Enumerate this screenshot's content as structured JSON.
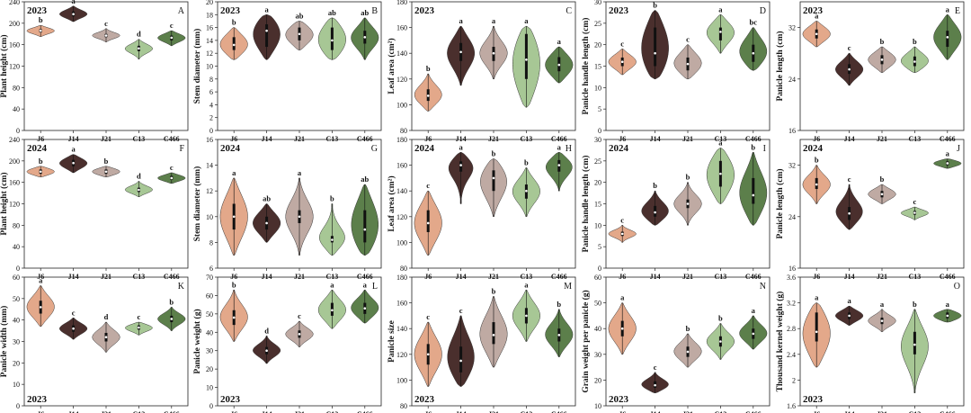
{
  "chart_data": {
    "type": "violin",
    "categories": [
      "J6",
      "J14",
      "J21",
      "C13",
      "C466"
    ],
    "colors": {
      "J6": "#e3a88a",
      "J14": "#4a2f2d",
      "J21": "#bfaaa3",
      "C13": "#a7c795",
      "C466": "#5c7f4b"
    },
    "panels": [
      {
        "letter": "A",
        "year": "2023",
        "year_pos": "top",
        "ylabel": "Plant height (cm)",
        "ylim": [
          0,
          240
        ],
        "yticks": [
          0,
          40,
          80,
          120,
          160,
          200,
          240
        ],
        "values": [
          {
            "min": 175,
            "max": 196,
            "median": 186,
            "q1": 183,
            "q3": 189
          },
          {
            "min": 203,
            "max": 232,
            "median": 217,
            "q1": 213,
            "q3": 222
          },
          {
            "min": 165,
            "max": 190,
            "median": 177,
            "q1": 174,
            "q3": 180
          },
          {
            "min": 133,
            "max": 170,
            "median": 153,
            "q1": 148,
            "q3": 158
          },
          {
            "min": 158,
            "max": 186,
            "median": 173,
            "q1": 168,
            "q3": 177
          }
        ],
        "letters": [
          "b",
          "a",
          "c",
          "d",
          "c"
        ]
      },
      {
        "letter": "B",
        "year": "2023",
        "year_pos": "top",
        "ylabel": "Stem diameter (mm)",
        "ylim": [
          0,
          20
        ],
        "yticks": [
          0,
          2,
          4,
          6,
          8,
          10,
          12,
          14,
          16,
          18,
          20
        ],
        "values": [
          {
            "min": 11,
            "max": 16,
            "median": 13.3,
            "q1": 12.5,
            "q3": 14.5
          },
          {
            "min": 11,
            "max": 18,
            "median": 15.5,
            "q1": 13,
            "q3": 16.5
          },
          {
            "min": 12.5,
            "max": 17,
            "median": 15,
            "q1": 14,
            "q3": 16
          },
          {
            "min": 11,
            "max": 17.5,
            "median": 14,
            "q1": 12.5,
            "q3": 16
          },
          {
            "min": 11,
            "max": 17.5,
            "median": 14.5,
            "q1": 13.5,
            "q3": 15.5
          }
        ],
        "letters": [
          "b",
          "a",
          "ab",
          "ab",
          "ab"
        ]
      },
      {
        "letter": "C",
        "year": "2023",
        "year_pos": "top",
        "ylabel": "Leaf area (cm²)",
        "ylim": [
          80,
          180
        ],
        "yticks": [
          80,
          100,
          120,
          140,
          160,
          180
        ],
        "values": [
          {
            "min": 95,
            "max": 124,
            "median": 107,
            "q1": 103,
            "q3": 112
          },
          {
            "min": 115,
            "max": 161,
            "median": 141,
            "q1": 134,
            "q3": 148
          },
          {
            "min": 120,
            "max": 161,
            "median": 140,
            "q1": 134,
            "q3": 145
          },
          {
            "min": 98,
            "max": 161,
            "median": 135,
            "q1": 120,
            "q3": 155
          },
          {
            "min": 117,
            "max": 145,
            "median": 131,
            "q1": 126,
            "q3": 137
          }
        ],
        "letters": [
          "b",
          "a",
          "a",
          "a",
          "a"
        ]
      },
      {
        "letter": "D",
        "year": "2023",
        "year_pos": "top",
        "ylabel": "Panicle handle length (cm)",
        "ylim": [
          0,
          30
        ],
        "yticks": [
          0,
          5,
          10,
          15,
          20,
          25,
          30
        ],
        "values": [
          {
            "min": 13,
            "max": 19,
            "median": 16,
            "q1": 15,
            "q3": 17
          },
          {
            "min": 12,
            "max": 28,
            "median": 18,
            "q1": 15,
            "q3": 24
          },
          {
            "min": 12,
            "max": 20,
            "median": 15.5,
            "q1": 14,
            "q3": 17
          },
          {
            "min": 18,
            "max": 27,
            "median": 23,
            "q1": 21,
            "q3": 24
          },
          {
            "min": 14,
            "max": 24,
            "median": 18,
            "q1": 16,
            "q3": 20
          }
        ],
        "letters": [
          "c",
          "b",
          "c",
          "a",
          "bc"
        ]
      },
      {
        "letter": "E",
        "year": "2023",
        "year_pos": "top",
        "ylabel": "Panicle length (cm)",
        "ylim": [
          16,
          36
        ],
        "yticks": [
          16,
          24,
          32
        ],
        "values": [
          {
            "min": 29,
            "max": 33,
            "median": 31,
            "q1": 30.3,
            "q3": 31.7
          },
          {
            "min": 23,
            "max": 28,
            "median": 25.5,
            "q1": 24.8,
            "q3": 26.3
          },
          {
            "min": 25,
            "max": 29,
            "median": 27,
            "q1": 26.3,
            "q3": 27.7
          },
          {
            "min": 25,
            "max": 29,
            "median": 26.7,
            "q1": 26,
            "q3": 27.5
          },
          {
            "min": 27,
            "max": 34,
            "median": 30.5,
            "q1": 29,
            "q3": 31.5
          }
        ],
        "letters": [
          "a",
          "c",
          "b",
          "b",
          "a"
        ]
      },
      {
        "letter": "F",
        "year": "2024",
        "year_pos": "top",
        "ylabel": "Plant height (cm)",
        "ylim": [
          0,
          240
        ],
        "yticks": [
          0,
          40,
          80,
          120,
          160,
          200,
          240
        ],
        "values": [
          {
            "min": 170,
            "max": 190,
            "median": 180,
            "q1": 176,
            "q3": 184
          },
          {
            "min": 178,
            "max": 212,
            "median": 196,
            "q1": 190,
            "q3": 202
          },
          {
            "min": 170,
            "max": 190,
            "median": 180,
            "q1": 176,
            "q3": 184
          },
          {
            "min": 133,
            "max": 162,
            "median": 146,
            "q1": 142,
            "q3": 150
          },
          {
            "min": 158,
            "max": 178,
            "median": 168,
            "q1": 165,
            "q3": 172
          }
        ],
        "letters": [
          "b",
          "a",
          "b",
          "d",
          "c"
        ]
      },
      {
        "letter": "G",
        "year": "2024",
        "year_pos": "top",
        "ylabel": "Stem diameter (mm)",
        "ylim": [
          6,
          16
        ],
        "yticks": [
          6,
          8,
          10,
          12,
          14,
          16
        ],
        "values": [
          {
            "min": 7,
            "max": 13,
            "median": 10,
            "q1": 9,
            "q3": 11
          },
          {
            "min": 8,
            "max": 11,
            "median": 9.5,
            "q1": 9,
            "q3": 10
          },
          {
            "min": 7,
            "max": 13,
            "median": 10,
            "q1": 9.5,
            "q3": 10.5
          },
          {
            "min": 7,
            "max": 11,
            "median": 8.2,
            "q1": 8,
            "q3": 8.5
          },
          {
            "min": 7,
            "max": 12.5,
            "median": 9,
            "q1": 8,
            "q3": 10.5
          }
        ],
        "letters": [
          "a",
          "ab",
          "a",
          "b",
          "ab"
        ]
      },
      {
        "letter": "H",
        "year": "2024",
        "year_pos": "top",
        "ylabel": "Leaf area (cm²)",
        "ylim": [
          80,
          180
        ],
        "yticks": [
          80,
          100,
          120,
          140,
          160,
          180
        ],
        "values": [
          {
            "min": 90,
            "max": 140,
            "median": 115,
            "q1": 108,
            "q3": 125
          },
          {
            "min": 130,
            "max": 170,
            "median": 160,
            "q1": 155,
            "q3": 163
          },
          {
            "min": 120,
            "max": 165,
            "median": 150,
            "q1": 140,
            "q3": 156
          },
          {
            "min": 120,
            "max": 158,
            "median": 140,
            "q1": 134,
            "q3": 145
          },
          {
            "min": 140,
            "max": 170,
            "median": 160,
            "q1": 155,
            "q3": 164
          }
        ],
        "letters": [
          "c",
          "a",
          "b",
          "b",
          "a"
        ]
      },
      {
        "letter": "I",
        "year": "2024",
        "year_pos": "top",
        "ylabel": "Panicle handle length (cm)",
        "ylim": [
          0,
          30
        ],
        "yticks": [
          0,
          5,
          10,
          15,
          20,
          25,
          30
        ],
        "values": [
          {
            "min": 6,
            "max": 10,
            "median": 8,
            "q1": 7.5,
            "q3": 8.5
          },
          {
            "min": 10,
            "max": 18,
            "median": 13,
            "q1": 12,
            "q3": 14.5
          },
          {
            "min": 10,
            "max": 20,
            "median": 15,
            "q1": 14,
            "q3": 16
          },
          {
            "min": 15,
            "max": 28,
            "median": 22,
            "q1": 19,
            "q3": 25
          },
          {
            "min": 10,
            "max": 27,
            "median": 17,
            "q1": 15,
            "q3": 21
          }
        ],
        "letters": [
          "c",
          "b",
          "b",
          "a",
          "b"
        ]
      },
      {
        "letter": "J",
        "year": "2024",
        "year_pos": "top",
        "ylabel": "Panicle length (cm)",
        "ylim": [
          16,
          36
        ],
        "yticks": [
          16,
          24,
          32
        ],
        "values": [
          {
            "min": 26,
            "max": 32,
            "median": 29,
            "q1": 28.3,
            "q3": 30
          },
          {
            "min": 22,
            "max": 29,
            "median": 24.5,
            "q1": 23.5,
            "q3": 25.5
          },
          {
            "min": 26,
            "max": 29,
            "median": 27.5,
            "q1": 27,
            "q3": 28
          },
          {
            "min": 23.5,
            "max": 25.5,
            "median": 24.6,
            "q1": 24.3,
            "q3": 24.9
          },
          {
            "min": 31.5,
            "max": 33,
            "median": 32.3,
            "q1": 32,
            "q3": 32.6
          }
        ],
        "letters": [
          "b",
          "c",
          "b",
          "c",
          "a"
        ]
      },
      {
        "letter": "K",
        "year": "2023",
        "year_pos": "bottom",
        "ylabel": "Panicle width (mm)",
        "ylim": [
          0,
          60
        ],
        "yticks": [
          0,
          10,
          20,
          30,
          40,
          50,
          60
        ],
        "values": [
          {
            "min": 37,
            "max": 56,
            "median": 46,
            "q1": 43,
            "q3": 49
          },
          {
            "min": 31,
            "max": 41,
            "median": 36,
            "q1": 34.5,
            "q3": 37.5
          },
          {
            "min": 25,
            "max": 39,
            "median": 32,
            "q1": 30,
            "q3": 34
          },
          {
            "min": 33,
            "max": 39,
            "median": 36.5,
            "q1": 35.5,
            "q3": 37.5
          },
          {
            "min": 35,
            "max": 46,
            "median": 40.5,
            "q1": 39,
            "q3": 42
          }
        ],
        "letters": [
          "a",
          "c",
          "d",
          "c",
          "b"
        ]
      },
      {
        "letter": "L",
        "year": "2023",
        "year_pos": "bottom",
        "ylabel": "Panicle weight (g)",
        "ylim": [
          0,
          70
        ],
        "yticks": [
          0,
          10,
          20,
          30,
          40,
          50,
          60,
          70
        ],
        "values": [
          {
            "min": 35,
            "max": 63,
            "median": 48,
            "q1": 44,
            "q3": 52
          },
          {
            "min": 23,
            "max": 38,
            "median": 30,
            "q1": 28,
            "q3": 32
          },
          {
            "min": 32,
            "max": 46,
            "median": 39,
            "q1": 37,
            "q3": 41
          },
          {
            "min": 42,
            "max": 63,
            "median": 52,
            "q1": 49,
            "q3": 56
          },
          {
            "min": 45,
            "max": 63,
            "median": 53,
            "q1": 50,
            "q3": 56
          }
        ],
        "letters": [
          "b",
          "d",
          "c",
          "a",
          "a"
        ]
      },
      {
        "letter": "M",
        "year": "2023",
        "year_pos": "bottom",
        "ylabel": "Panicle size",
        "ylim": [
          80,
          180
        ],
        "yticks": [
          80,
          100,
          120,
          140,
          160,
          180
        ],
        "values": [
          {
            "min": 95,
            "max": 145,
            "median": 120,
            "q1": 112,
            "q3": 128
          },
          {
            "min": 95,
            "max": 150,
            "median": 115,
            "q1": 106,
            "q3": 126
          },
          {
            "min": 110,
            "max": 165,
            "median": 135,
            "q1": 128,
            "q3": 145
          },
          {
            "min": 130,
            "max": 170,
            "median": 150,
            "q1": 144,
            "q3": 156
          },
          {
            "min": 118,
            "max": 155,
            "median": 135,
            "q1": 130,
            "q3": 140
          }
        ],
        "letters": [
          "c",
          "c",
          "b",
          "a",
          "b"
        ]
      },
      {
        "letter": "N",
        "year": "2023",
        "year_pos": "bottom",
        "ylabel": "Grain weight per panicle (g)",
        "ylim": [
          10,
          60
        ],
        "yticks": [
          10,
          20,
          30,
          40,
          50,
          60
        ],
        "values": [
          {
            "min": 30,
            "max": 50,
            "median": 40,
            "q1": 37,
            "q3": 43
          },
          {
            "min": 15,
            "max": 23,
            "median": 18,
            "q1": 17,
            "q3": 19.5
          },
          {
            "min": 25,
            "max": 38,
            "median": 31,
            "q1": 29,
            "q3": 33
          },
          {
            "min": 28,
            "max": 42,
            "median": 35,
            "q1": 33,
            "q3": 37
          },
          {
            "min": 32,
            "max": 45,
            "median": 38,
            "q1": 36,
            "q3": 40
          }
        ],
        "letters": [
          "a",
          "c",
          "b",
          "b",
          "a"
        ]
      },
      {
        "letter": "O",
        "year": "2023",
        "year_pos": "bottom",
        "ylabel": "Thousand kernel weight (g)",
        "ylim": [
          1.6,
          3.6
        ],
        "yticks": [
          1.6,
          2.0,
          2.4,
          2.8,
          3.2,
          3.6
        ],
        "values": [
          {
            "min": 2.2,
            "max": 3.2,
            "median": 2.75,
            "q1": 2.6,
            "q3": 3.05
          },
          {
            "min": 2.85,
            "max": 3.15,
            "median": 3.0,
            "q1": 2.95,
            "q3": 3.05
          },
          {
            "min": 2.75,
            "max": 3.1,
            "median": 2.92,
            "q1": 2.87,
            "q3": 2.97
          },
          {
            "min": 1.8,
            "max": 3.1,
            "median": 2.55,
            "q1": 2.4,
            "q3": 2.75
          },
          {
            "min": 2.9,
            "max": 3.1,
            "median": 3.0,
            "q1": 2.96,
            "q3": 3.05
          }
        ],
        "letters": [
          "a",
          "a",
          "a",
          "b",
          "a"
        ]
      }
    ]
  }
}
